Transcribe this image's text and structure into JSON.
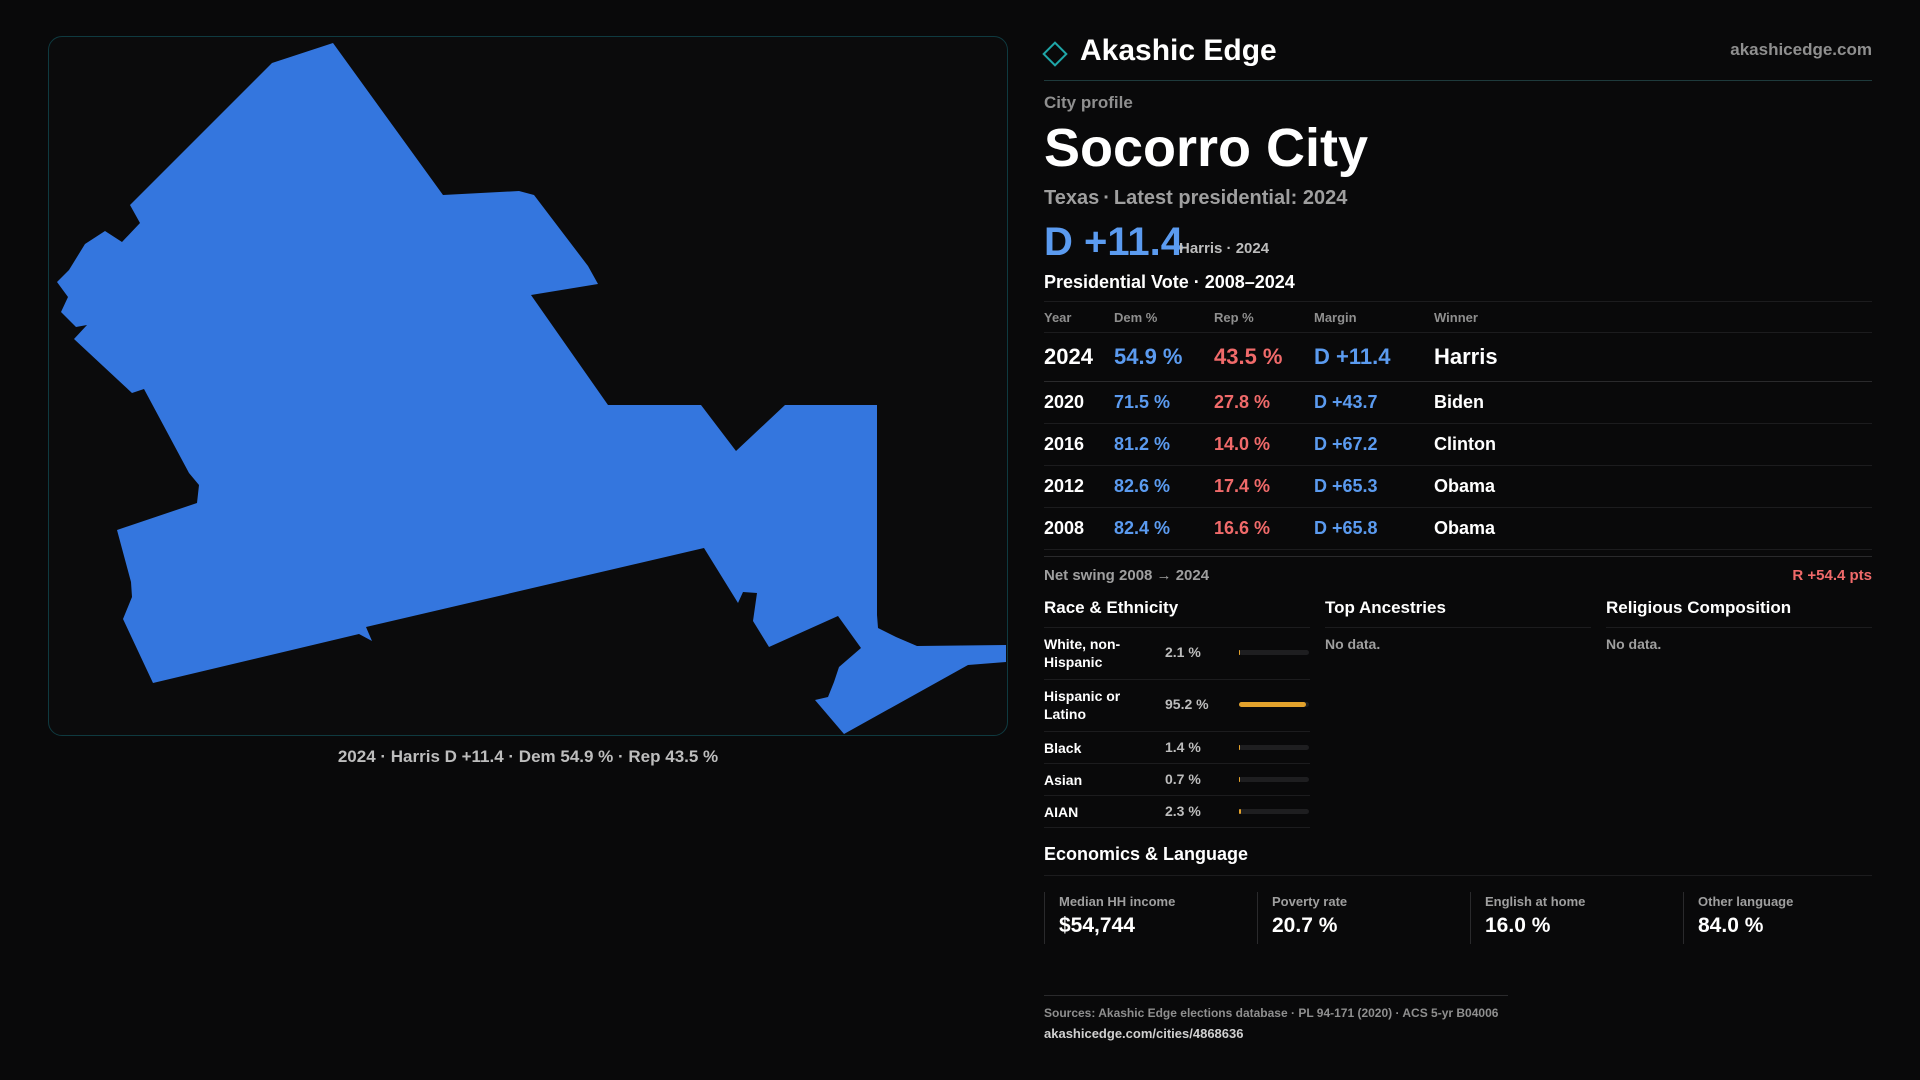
{
  "brand": {
    "name": "Akashic Edge",
    "url": "akashicedge.com"
  },
  "profile": {
    "kicker": "City profile",
    "city": "Socorro City",
    "state": "Texas",
    "latest_label": "Latest presidential: 2024",
    "headline_margin": "D +11.4",
    "headline_note": "Harris · 2024"
  },
  "map": {
    "caption": "2024 · Harris D +11.4 · Dem 54.9 % · Rep 43.5 %",
    "fill_color": "#3476de",
    "border_color": "#0f3a40"
  },
  "votes": {
    "title": "Presidential Vote · 2008–2024",
    "headers": {
      "year": "Year",
      "dem": "Dem %",
      "rep": "Rep %",
      "margin": "Margin",
      "winner": "Winner"
    },
    "rows": [
      {
        "year": "2024",
        "dem": "54.9 %",
        "rep": "43.5 %",
        "margin": "D +11.4",
        "winner": "Harris"
      },
      {
        "year": "2020",
        "dem": "71.5 %",
        "rep": "27.8 %",
        "margin": "D +43.7",
        "winner": "Biden"
      },
      {
        "year": "2016",
        "dem": "81.2 %",
        "rep": "14.0 %",
        "margin": "D +67.2",
        "winner": "Clinton"
      },
      {
        "year": "2012",
        "dem": "82.6 %",
        "rep": "17.4 %",
        "margin": "D +65.3",
        "winner": "Obama"
      },
      {
        "year": "2008",
        "dem": "82.4 %",
        "rep": "16.6 %",
        "margin": "D +65.8",
        "winner": "Obama"
      }
    ],
    "swing_label": "Net swing 2008 → 2024",
    "swing_value": "R +54.4 pts"
  },
  "race": {
    "title": "Race & Ethnicity",
    "rows": [
      {
        "label": "White, non-Hispanic",
        "pct": "2.1 %",
        "value": 2.1
      },
      {
        "label": "Hispanic or Latino",
        "pct": "95.2 %",
        "value": 95.2
      },
      {
        "label": "Black",
        "pct": "1.4 %",
        "value": 1.4
      },
      {
        "label": "Asian",
        "pct": "0.7 %",
        "value": 0.7
      },
      {
        "label": "AIAN",
        "pct": "2.3 %",
        "value": 2.3
      }
    ]
  },
  "ancestries": {
    "title": "Top Ancestries",
    "empty": "No data."
  },
  "religion": {
    "title": "Religious Composition",
    "empty": "No data."
  },
  "economics": {
    "title": "Economics & Language",
    "cells": [
      {
        "label": "Median HH income",
        "value": "$54,744"
      },
      {
        "label": "Poverty rate",
        "value": "20.7 %"
      },
      {
        "label": "English at home",
        "value": "16.0 %"
      },
      {
        "label": "Other language",
        "value": "84.0 %"
      }
    ]
  },
  "footer": {
    "sources": "Sources: Akashic Edge elections database · PL 94-171 (2020) · ACS 5-yr B04006",
    "city_url": "akashicedge.com/cities/4868636"
  }
}
